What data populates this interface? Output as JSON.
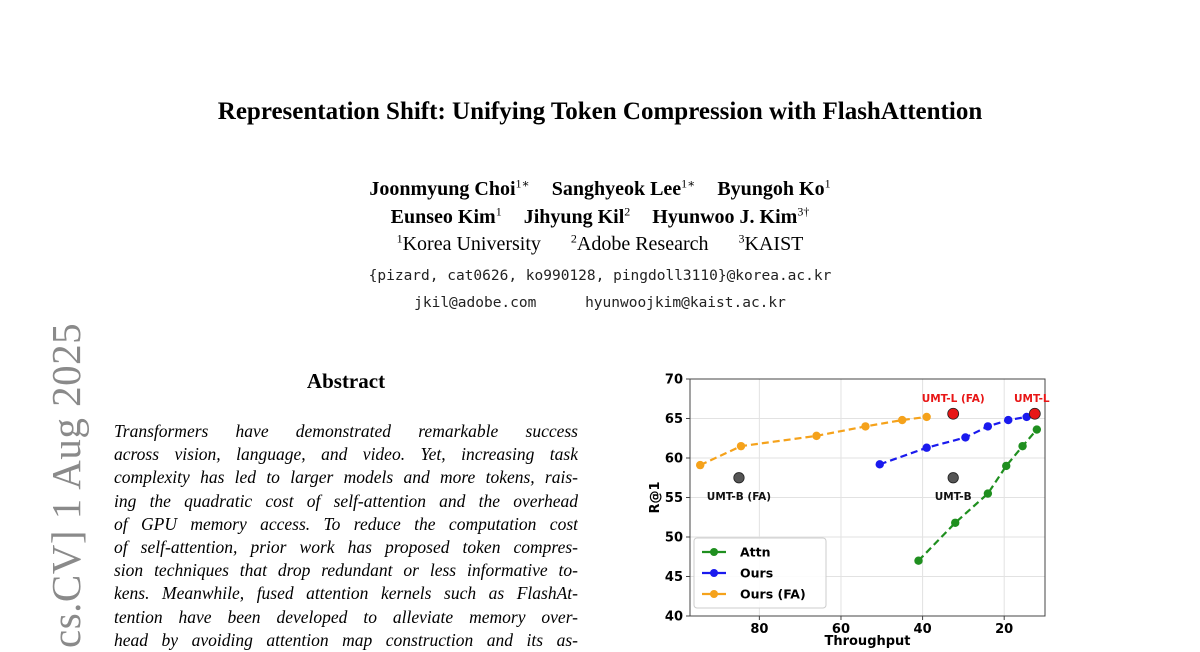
{
  "paper": {
    "title": "Representation Shift: Unifying Token Compression with FlashAttention",
    "authors_row1": [
      {
        "name": "Joonmyung Choi",
        "sup": "1∗"
      },
      {
        "name": "Sanghyeok Lee",
        "sup": "1∗"
      },
      {
        "name": "Byungoh Ko",
        "sup": "1"
      }
    ],
    "authors_row2": [
      {
        "name": "Eunseo Kim",
        "sup": "1"
      },
      {
        "name": "Jihyung Kil",
        "sup": "2"
      },
      {
        "name": "Hyunwoo J. Kim",
        "sup": "3†"
      }
    ],
    "affiliations": [
      {
        "sup": "1",
        "name": "Korea University"
      },
      {
        "sup": "2",
        "name": "Adobe Research"
      },
      {
        "sup": "3",
        "name": "KAIST"
      }
    ],
    "emails_line1": "{pizard, cat0626, ko990128, pingdoll3110}@korea.ac.kr",
    "emails_line2": [
      "jkil@adobe.com",
      "hyunwoojkim@kaist.ac.kr"
    ],
    "arxiv_stamp": "cs.CV]  1 Aug 2025",
    "abstract_heading": "Abstract",
    "abstract_lines": [
      "Transformers have demonstrated remarkable success",
      "across vision, language, and video.  Yet, increasing task",
      "complexity has led to larger models and more tokens, rais-",
      "ing the quadratic cost of self-attention and the overhead",
      "of GPU memory access.  To reduce the computation cost",
      "of self-attention, prior work has proposed token compres-",
      "sion techniques that drop redundant or less informative to-",
      "kens.  Meanwhile, fused attention kernels such as FlashAt-",
      "tention have been developed to alleviate memory over-",
      "head by avoiding attention map construction and its as-"
    ]
  },
  "chart_data": {
    "type": "line",
    "xlabel": "Throughput",
    "ylabel": "R@1",
    "x_reversed": true,
    "xlim": [
      97,
      10
    ],
    "ylim": [
      40,
      70
    ],
    "xticks": [
      80,
      60,
      40,
      20
    ],
    "yticks": [
      40,
      45,
      50,
      55,
      60,
      65,
      70
    ],
    "grid": true,
    "legend_position": "lower-left",
    "series": [
      {
        "name": "Attn",
        "color": "#1f8f1f",
        "x": [
          41,
          32,
          24,
          19.5,
          15.5,
          12
        ],
        "y": [
          47.0,
          51.8,
          55.5,
          59.0,
          61.5,
          63.6
        ]
      },
      {
        "name": "Ours",
        "color": "#1a1aee",
        "x": [
          50.5,
          39,
          29.5,
          24,
          19,
          14.5
        ],
        "y": [
          59.2,
          61.3,
          62.6,
          64.0,
          64.8,
          65.2
        ]
      },
      {
        "name": "Ours (FA)",
        "color": "#f5a21b",
        "x": [
          94.5,
          84.5,
          66,
          54,
          45,
          39
        ],
        "y": [
          59.1,
          61.5,
          62.8,
          64.0,
          64.8,
          65.2
        ]
      }
    ],
    "reference_points": [
      {
        "label": "UMT-L (FA)",
        "x": 32.5,
        "y": 65.6,
        "color": "#e81616"
      },
      {
        "label": "UMT-L",
        "x": 12.5,
        "y": 65.6,
        "color": "#e81616"
      },
      {
        "label": "UMT-B (FA)",
        "x": 85,
        "y": 57.5,
        "color": "#555555"
      },
      {
        "label": "UMT-B",
        "x": 32.5,
        "y": 57.5,
        "color": "#555555"
      }
    ]
  }
}
